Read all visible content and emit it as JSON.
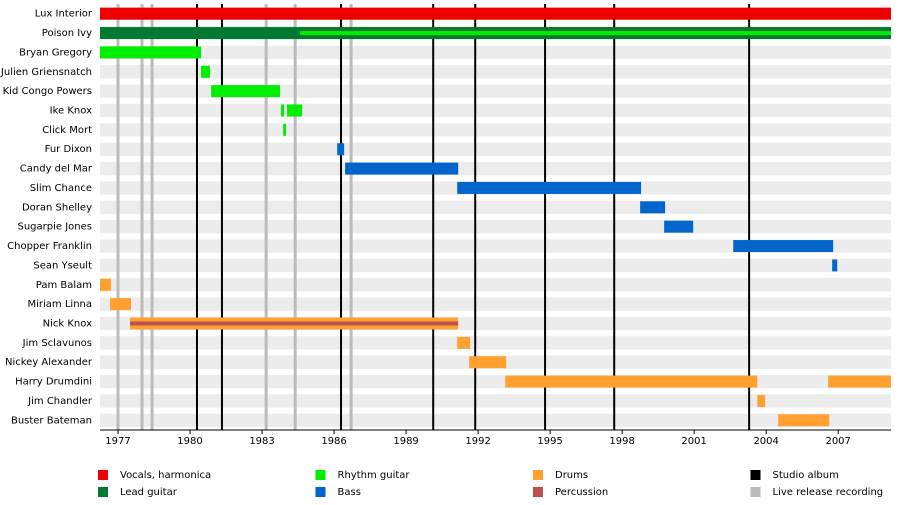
{
  "chart_data": {
    "type": "timeline",
    "xlim": [
      1976.25,
      2009.2
    ],
    "xticks": [
      1977,
      1980,
      1983,
      1986,
      1989,
      1992,
      1995,
      1998,
      2001,
      2004,
      2007
    ],
    "roles": [
      {
        "name": "Vocals, harmonica",
        "color": "#ee0000"
      },
      {
        "name": "Lead guitar",
        "color": "#007a33"
      },
      {
        "name": "Rhythm guitar",
        "color": "#00ee00"
      },
      {
        "name": "Bass",
        "color": "#0066cc"
      },
      {
        "name": "Drums",
        "color": "#ffa030"
      },
      {
        "name": "Percussion",
        "color": "#c05050"
      }
    ],
    "events": [
      {
        "name": "Studio album",
        "color": "#000000",
        "dates": [
          1980.29,
          1981.33,
          1986.29,
          1990.13,
          1991.88,
          1994.79,
          1997.67,
          2003.29
        ]
      },
      {
        "name": "Live release recording",
        "color": "#bbbbbb",
        "dates": [
          1977.0,
          1978.0,
          1978.42,
          1983.17,
          1984.38,
          1986.71
        ]
      }
    ],
    "members": [
      {
        "name": "Lux Interior",
        "bars": [
          {
            "role": "Vocals, harmonica",
            "start": 1976.25,
            "end": 2009.2
          }
        ]
      },
      {
        "name": "Poison Ivy",
        "bars": [
          {
            "role": "Lead guitar",
            "start": 1976.25,
            "end": 2009.2
          },
          {
            "role": "Rhythm guitar",
            "start": 1984.58,
            "end": 2009.2
          }
        ]
      },
      {
        "name": "Bryan Gregory",
        "bars": [
          {
            "role": "Rhythm guitar",
            "start": 1976.25,
            "end": 1980.46
          }
        ]
      },
      {
        "name": "Julien Griensnatch",
        "bars": [
          {
            "role": "Rhythm guitar",
            "start": 1980.46,
            "end": 1980.83
          }
        ]
      },
      {
        "name": "Kid Congo Powers",
        "bars": [
          {
            "role": "Rhythm guitar",
            "start": 1980.88,
            "end": 1983.75
          }
        ]
      },
      {
        "name": "Ike Knox",
        "bars": [
          {
            "role": "Rhythm guitar",
            "start": 1983.79,
            "end": 1983.92
          },
          {
            "role": "Rhythm guitar",
            "start": 1984.04,
            "end": 1984.67
          }
        ]
      },
      {
        "name": "Click Mort",
        "bars": [
          {
            "role": "Rhythm guitar",
            "start": 1983.88,
            "end": 1984.0
          }
        ]
      },
      {
        "name": "Fur Dixon",
        "bars": [
          {
            "role": "Bass",
            "start": 1986.13,
            "end": 1986.42
          }
        ]
      },
      {
        "name": "Candy del Mar",
        "bars": [
          {
            "role": "Bass",
            "start": 1986.46,
            "end": 1991.17
          }
        ]
      },
      {
        "name": "Slim Chance",
        "bars": [
          {
            "role": "Bass",
            "start": 1991.13,
            "end": 1998.79
          }
        ]
      },
      {
        "name": "Doran Shelley",
        "bars": [
          {
            "role": "Bass",
            "start": 1998.75,
            "end": 1999.79
          }
        ]
      },
      {
        "name": "Sugarpie Jones",
        "bars": [
          {
            "role": "Bass",
            "start": 1999.75,
            "end": 2000.96
          }
        ]
      },
      {
        "name": "Chopper Franklin",
        "bars": [
          {
            "role": "Bass",
            "start": 2002.63,
            "end": 2006.79
          }
        ]
      },
      {
        "name": "Sean Yseult",
        "bars": [
          {
            "role": "Bass",
            "start": 2006.75,
            "end": 2006.96
          }
        ]
      },
      {
        "name": "Pam Balam",
        "bars": [
          {
            "role": "Drums",
            "start": 1976.25,
            "end": 1976.71
          }
        ]
      },
      {
        "name": "Miriam Linna",
        "bars": [
          {
            "role": "Drums",
            "start": 1976.67,
            "end": 1977.54
          }
        ]
      },
      {
        "name": "Nick Knox",
        "bars": [
          {
            "role": "Drums",
            "start": 1977.5,
            "end": 1991.17
          },
          {
            "role": "Percussion",
            "start": 1977.5,
            "end": 1991.17
          }
        ]
      },
      {
        "name": "Jim Sclavunos",
        "bars": [
          {
            "role": "Drums",
            "start": 1991.13,
            "end": 1991.67
          }
        ]
      },
      {
        "name": "Nickey Alexander",
        "bars": [
          {
            "role": "Drums",
            "start": 1991.63,
            "end": 1993.17
          }
        ]
      },
      {
        "name": "Harry Drumdini",
        "bars": [
          {
            "role": "Drums",
            "start": 1993.13,
            "end": 2003.63
          },
          {
            "role": "Drums",
            "start": 2006.58,
            "end": 2009.2
          }
        ]
      },
      {
        "name": "Jim Chandler",
        "bars": [
          {
            "role": "Drums",
            "start": 2003.63,
            "end": 2003.96
          }
        ]
      },
      {
        "name": "Buster Bateman",
        "bars": [
          {
            "role": "Drums",
            "start": 2004.5,
            "end": 2006.63
          }
        ]
      }
    ]
  }
}
